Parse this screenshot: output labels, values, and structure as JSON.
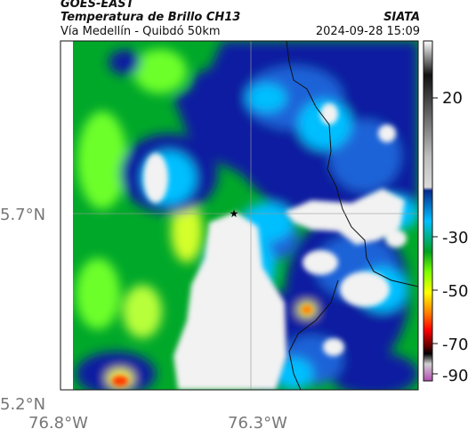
{
  "header": {
    "satellite": "GOES-EAST",
    "product": "Temperatura de Brillo CH13",
    "route": "Vía Medellín - Quibdó 50km",
    "agency": "SIATA",
    "datetime": "2024-09-28 15:09"
  },
  "axes": {
    "lat_labels": [
      "5.7°N",
      "5.2°N"
    ],
    "lon_labels": [
      "76.8°W",
      "76.3°W"
    ]
  },
  "colorbar": {
    "tick_labels": [
      "20",
      "-30",
      "-50",
      "-70",
      "-90"
    ],
    "stops": [
      "#ffffff",
      "#1a1a1a",
      "#c0c0c0",
      "#d8d8d8",
      "#0a2a8a",
      "#00bfff",
      "#00a020",
      "#7cff00",
      "#ffff00",
      "#ff7f00",
      "#ff0000",
      "#6a0000",
      "#000000",
      "#cfcfcf",
      "#cc66cc"
    ]
  },
  "map": {
    "marker": "star-icon",
    "palette": {
      "green": "#00b000",
      "lime": "#6dff2a",
      "yellow": "#ffff33",
      "deep_blue": "#0a1fa0",
      "mid_blue": "#1e63d8",
      "cyan": "#00bfff",
      "white": "#f2f2f2",
      "red": "#ff3b00"
    }
  }
}
